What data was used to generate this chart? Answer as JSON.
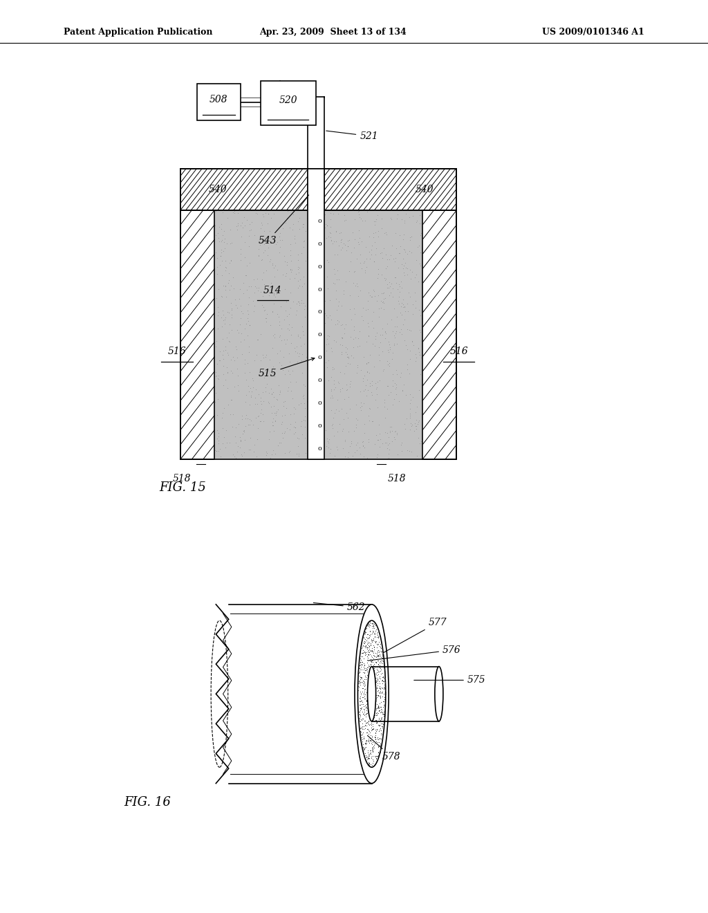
{
  "header_left": "Patent Application Publication",
  "header_mid": "Apr. 23, 2009  Sheet 13 of 134",
  "header_right": "US 2009/0101346 A1",
  "fig15_label": "FIG. 15",
  "fig16_label": "FIG. 16",
  "background_color": "#ffffff",
  "line_color": "#000000"
}
